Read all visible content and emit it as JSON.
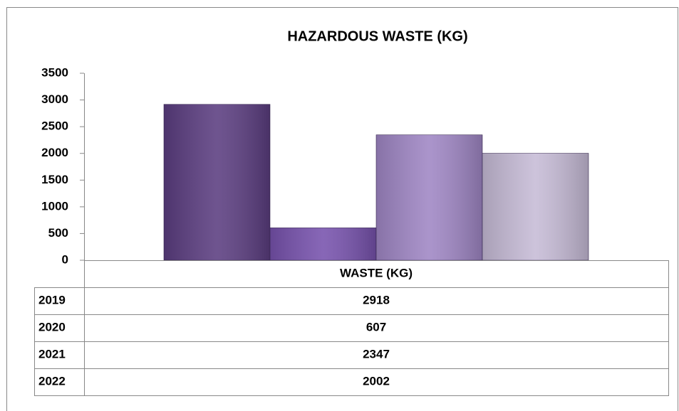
{
  "chart_data": {
    "type": "bar",
    "title": "HAZARDOUS WASTE (KG)",
    "categories": [
      "WASTE (KG)"
    ],
    "series": [
      {
        "name": "2019",
        "color": "#5b3d80",
        "values": [
          2918
        ]
      },
      {
        "name": "2020",
        "color": "#7752ad",
        "values": [
          607
        ]
      },
      {
        "name": "2021",
        "color": "#9f86c4",
        "values": [
          2347
        ]
      },
      {
        "name": "2022",
        "color": "#c6bbd6",
        "values": [
          2002
        ]
      }
    ],
    "ylim": [
      0,
      3500
    ],
    "yticks": [
      0,
      500,
      1000,
      1500,
      2000,
      2500,
      3000,
      3500
    ],
    "data_table": true
  }
}
